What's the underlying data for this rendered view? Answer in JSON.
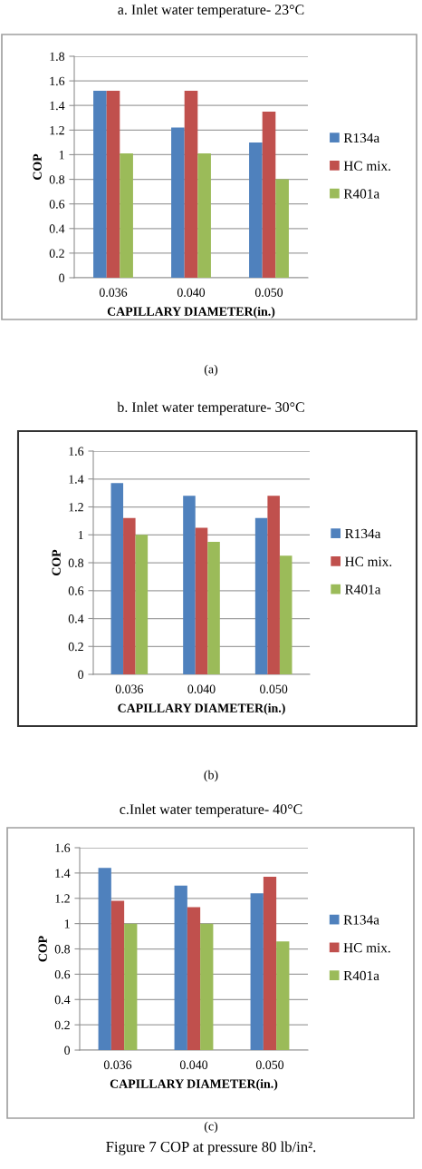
{
  "chart_data": [
    {
      "type": "bar",
      "title": "a. Inlet water temperature- 23°C",
      "xlabel": "CAPILLARY DIAMETER(in.)",
      "ylabel": "COP",
      "categories": [
        "0.036",
        "0.040",
        "0.050"
      ],
      "series": [
        {
          "name": "R134a",
          "color": "#4f81bd",
          "values": [
            1.52,
            1.22,
            1.1
          ]
        },
        {
          "name": "HC mix.",
          "color": "#c0504d",
          "values": [
            1.52,
            1.52,
            1.35
          ]
        },
        {
          "name": "R401a",
          "color": "#9bbb59",
          "values": [
            1.01,
            1.01,
            0.8
          ]
        }
      ],
      "ylim": [
        0,
        1.8
      ],
      "yticks": [
        0,
        0.2,
        0.4,
        0.6,
        0.8,
        1,
        1.2,
        1.4,
        1.6,
        1.8
      ],
      "grid": "y",
      "legend": "right",
      "annotations": [
        "(a)"
      ]
    },
    {
      "type": "bar",
      "title": "b. Inlet water temperature- 30°C",
      "xlabel": "CAPILLARY DIAMETER(in.)",
      "ylabel": "COP",
      "categories": [
        "0.036",
        "0.040",
        "0.050"
      ],
      "series": [
        {
          "name": "R134a",
          "color": "#4f81bd",
          "values": [
            1.37,
            1.28,
            1.12
          ]
        },
        {
          "name": "HC mix.",
          "color": "#c0504d",
          "values": [
            1.12,
            1.05,
            1.28
          ]
        },
        {
          "name": "R401a",
          "color": "#9bbb59",
          "values": [
            1.0,
            0.95,
            0.85
          ]
        }
      ],
      "ylim": [
        0,
        1.6
      ],
      "yticks": [
        0,
        0.2,
        0.4,
        0.6,
        0.8,
        1,
        1.2,
        1.4,
        1.6
      ],
      "grid": "y",
      "legend": "right",
      "annotations": [
        "(b)"
      ]
    },
    {
      "type": "bar",
      "title": "c.Inlet water temperature- 40°C",
      "xlabel": "CAPILLARY DIAMETER(in.)",
      "ylabel": "COP",
      "categories": [
        "0.036",
        "0.040",
        "0.050"
      ],
      "series": [
        {
          "name": "R134a",
          "color": "#4f81bd",
          "values": [
            1.44,
            1.3,
            1.24
          ]
        },
        {
          "name": "HC mix.",
          "color": "#c0504d",
          "values": [
            1.18,
            1.13,
            1.37
          ]
        },
        {
          "name": "R401a",
          "color": "#9bbb59",
          "values": [
            1.0,
            1.0,
            0.86
          ]
        }
      ],
      "ylim": [
        0,
        1.6
      ],
      "yticks": [
        0,
        0.2,
        0.4,
        0.6,
        0.8,
        1,
        1.2,
        1.4,
        1.6
      ],
      "grid": "y",
      "legend": "right",
      "annotations": [
        "(c)",
        "Figure 7 COP at pressure 80 lb/in²."
      ]
    }
  ]
}
